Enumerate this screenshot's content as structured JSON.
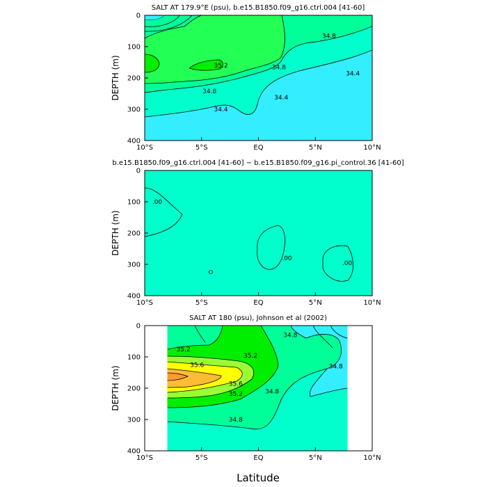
{
  "chart_data": [
    {
      "type": "contour",
      "title": "SALT AT 179.9°E (psu), b.e15.B1850.f09_g16.ctrl.004 [41-60]",
      "ylabel": "DEPTH (m)",
      "xlabel": "",
      "xlim": [
        -10,
        10
      ],
      "ylim": [
        400,
        0
      ],
      "xticks": [
        "10°S",
        "5°S",
        "EQ",
        "5°N",
        "10°N"
      ],
      "xtick_values": [
        -10,
        -5,
        0,
        5,
        10
      ],
      "yticks": [
        "0",
        "100",
        "200",
        "300",
        "400"
      ],
      "ytick_values": [
        0,
        100,
        200,
        300,
        400
      ],
      "colors": {
        "low": "#33eeff",
        "mid": "#00ffcc",
        "high": "#00ff99",
        "core": "#22ff55",
        "max": "#00ee00"
      },
      "contour_labels": [
        {
          "text": "34.8",
          "lat": 6.2,
          "depth": 65
        },
        {
          "text": "35.2",
          "lat": -3.3,
          "depth": 160
        },
        {
          "text": "34.8",
          "lat": 1.8,
          "depth": 165
        },
        {
          "text": "34.4",
          "lat": 8.3,
          "depth": 185
        },
        {
          "text": "34.8",
          "lat": -4.3,
          "depth": 242
        },
        {
          "text": "34.4",
          "lat": 2.0,
          "depth": 262
        },
        {
          "text": "34.4",
          "lat": -3.3,
          "depth": 300
        }
      ]
    },
    {
      "type": "contour",
      "title": "b.e15.B1850.f09_g16.ctrl.004 [41-60] − b.e15.B1850.f09_g16.pi_control.36 [41-60]",
      "ylabel": "DEPTH (m)",
      "xlabel": "",
      "xlim": [
        -10,
        10
      ],
      "ylim": [
        400,
        0
      ],
      "xticks": [
        "10°S",
        "5°S",
        "EQ",
        "5°N",
        "10°N"
      ],
      "xtick_values": [
        -10,
        -5,
        0,
        5,
        10
      ],
      "yticks": [
        "0",
        "100",
        "200",
        "300",
        "400"
      ],
      "ytick_values": [
        0,
        100,
        200,
        300,
        400
      ],
      "colors": {
        "background": "#00ffcc",
        "positive": "#22ff55"
      },
      "contour_labels": [
        {
          "text": ".00",
          "lat": -8.9,
          "depth": 100
        },
        {
          "text": ".00",
          "lat": 2.5,
          "depth": 280
        },
        {
          "text": ".00",
          "lat": 7.8,
          "depth": 295
        }
      ]
    },
    {
      "type": "contour",
      "title": "SALT AT 180 (psu), Johnson et al (2002)",
      "ylabel": "DEPTH (m)",
      "xlabel": "Latitude",
      "xlim": [
        -10,
        10
      ],
      "ylim": [
        400,
        0
      ],
      "xticks": [
        "10°S",
        "5°S",
        "EQ",
        "5°N",
        "10°N"
      ],
      "xtick_values": [
        -10,
        -5,
        0,
        5,
        10
      ],
      "yticks": [
        "0",
        "100",
        "200",
        "300",
        "400"
      ],
      "ytick_values": [
        0,
        100,
        200,
        300,
        400
      ],
      "data_extent": {
        "lat": [
          -8,
          8
        ],
        "depth": [
          0,
          400
        ]
      },
      "colors": {
        "low": "#33eeff",
        "mid": "#00ffcc",
        "high": "#00ff99",
        "green": "#00ee00",
        "lime": "#99ff33",
        "yellow": "#ffff00",
        "orange": "#ffbb33",
        "peak": "#ff9933"
      },
      "contour_labels": [
        {
          "text": "35.2",
          "lat": -6.6,
          "depth": 75
        },
        {
          "text": "35.6",
          "lat": -5.4,
          "depth": 125
        },
        {
          "text": "35.2",
          "lat": -0.7,
          "depth": 95
        },
        {
          "text": "34.8",
          "lat": 2.8,
          "depth": 30
        },
        {
          "text": "34.8",
          "lat": 6.8,
          "depth": 130
        },
        {
          "text": "35.6",
          "lat": -2.0,
          "depth": 185
        },
        {
          "text": "35.2",
          "lat": -2.0,
          "depth": 218
        },
        {
          "text": "34.8",
          "lat": 1.2,
          "depth": 210
        },
        {
          "text": "34.8",
          "lat": -2.0,
          "depth": 300
        }
      ]
    }
  ]
}
